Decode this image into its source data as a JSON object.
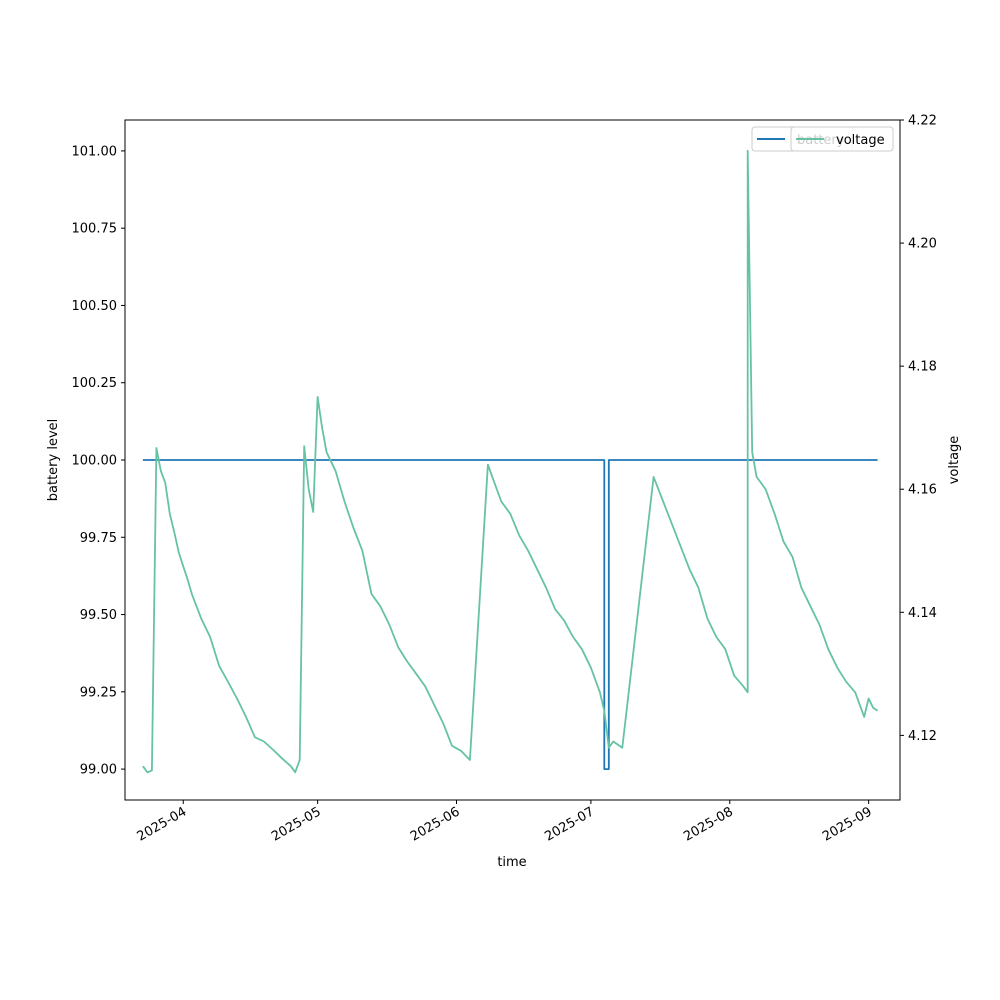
{
  "chart_data": {
    "type": "line",
    "xlabel": "time",
    "ylabel_left": "battery level",
    "ylabel_right": "voltage",
    "xlim": [
      "2025-03-19",
      "2025-09-08"
    ],
    "ylim_left": [
      98.9,
      101.1
    ],
    "ylim_right": [
      4.1095,
      4.22
    ],
    "x_ticks": [
      "2025-04",
      "2025-05",
      "2025-06",
      "2025-07",
      "2025-08",
      "2025-09"
    ],
    "y_ticks_left": [
      "99.00",
      "99.25",
      "99.50",
      "99.75",
      "100.00",
      "100.25",
      "100.50",
      "100.75",
      "101.00"
    ],
    "y_ticks_right": [
      "4.12",
      "4.14",
      "4.16",
      "4.18",
      "4.20",
      "4.22"
    ],
    "legend_left": {
      "placement": "top-right",
      "entries": [
        "battery"
      ]
    },
    "legend_right": {
      "placement": "top-right",
      "entries": [
        "voltage"
      ]
    },
    "colors": {
      "battery": "#1f77b4",
      "voltage": "#66c2a5"
    },
    "series": [
      {
        "name": "battery",
        "axis": "left",
        "points": [
          [
            "2025-03-23",
            100.0
          ],
          [
            "2025-07-04",
            100.0
          ],
          [
            "2025-07-04",
            99.0
          ],
          [
            "2025-07-05",
            99.0
          ],
          [
            "2025-07-05",
            100.0
          ],
          [
            "2025-09-03",
            100.0
          ]
        ]
      },
      {
        "name": "voltage",
        "axis": "right",
        "points": [
          [
            "2025-03-23",
            4.115
          ],
          [
            "2025-03-24",
            4.114
          ],
          [
            "2025-03-25",
            4.1143
          ],
          [
            "2025-03-26",
            4.1667
          ],
          [
            "2025-03-27",
            4.163
          ],
          [
            "2025-03-28",
            4.161
          ],
          [
            "2025-03-29",
            4.156
          ],
          [
            "2025-03-30",
            4.153
          ],
          [
            "2025-03-31",
            4.1497
          ],
          [
            "2025-04-01",
            4.1475
          ],
          [
            "2025-04-02",
            4.1453
          ],
          [
            "2025-04-03",
            4.1428
          ],
          [
            "2025-04-05",
            4.139
          ],
          [
            "2025-04-07",
            4.136
          ],
          [
            "2025-04-09",
            4.1313
          ],
          [
            "2025-04-11",
            4.1287
          ],
          [
            "2025-04-13",
            4.126
          ],
          [
            "2025-04-15",
            4.123
          ],
          [
            "2025-04-17",
            4.1197
          ],
          [
            "2025-04-19",
            4.119
          ],
          [
            "2025-04-21",
            4.1177
          ],
          [
            "2025-04-23",
            4.1163
          ],
          [
            "2025-04-25",
            4.115
          ],
          [
            "2025-04-26",
            4.114
          ],
          [
            "2025-04-27",
            4.116
          ],
          [
            "2025-04-28",
            4.167
          ],
          [
            "2025-04-29",
            4.16
          ],
          [
            "2025-04-30",
            4.1563
          ],
          [
            "2025-05-01",
            4.175
          ],
          [
            "2025-05-02",
            4.17
          ],
          [
            "2025-05-03",
            4.166
          ],
          [
            "2025-05-05",
            4.163
          ],
          [
            "2025-05-07",
            4.158
          ],
          [
            "2025-05-09",
            4.1537
          ],
          [
            "2025-05-11",
            4.15
          ],
          [
            "2025-05-13",
            4.143
          ],
          [
            "2025-05-15",
            4.141
          ],
          [
            "2025-05-17",
            4.138
          ],
          [
            "2025-05-19",
            4.1343
          ],
          [
            "2025-05-21",
            4.132
          ],
          [
            "2025-05-23",
            4.13
          ],
          [
            "2025-05-25",
            4.128
          ],
          [
            "2025-05-27",
            4.125
          ],
          [
            "2025-05-29",
            4.122
          ],
          [
            "2025-05-31",
            4.1183
          ],
          [
            "2025-06-02",
            4.1175
          ],
          [
            "2025-06-04",
            4.116
          ],
          [
            "2025-06-08",
            4.164
          ],
          [
            "2025-06-09",
            4.162
          ],
          [
            "2025-06-11",
            4.158
          ],
          [
            "2025-06-13",
            4.156
          ],
          [
            "2025-06-15",
            4.1525
          ],
          [
            "2025-06-17",
            4.15
          ],
          [
            "2025-06-19",
            4.147
          ],
          [
            "2025-06-21",
            4.144
          ],
          [
            "2025-06-23",
            4.1405
          ],
          [
            "2025-06-25",
            4.1387
          ],
          [
            "2025-06-27",
            4.136
          ],
          [
            "2025-06-29",
            4.134
          ],
          [
            "2025-07-01",
            4.131
          ],
          [
            "2025-07-03",
            4.127
          ],
          [
            "2025-07-04",
            4.124
          ],
          [
            "2025-07-05",
            4.118
          ],
          [
            "2025-07-06",
            4.119
          ],
          [
            "2025-07-07",
            4.1185
          ],
          [
            "2025-07-08",
            4.118
          ],
          [
            "2025-07-15",
            4.162
          ],
          [
            "2025-07-23",
            4.147
          ],
          [
            "2025-07-25",
            4.144
          ],
          [
            "2025-07-27",
            4.139
          ],
          [
            "2025-07-29",
            4.136
          ],
          [
            "2025-07-31",
            4.134
          ],
          [
            "2025-08-02",
            4.1297
          ],
          [
            "2025-08-04",
            4.128
          ],
          [
            "2025-08-05",
            4.127
          ],
          [
            "2025-08-05",
            4.215
          ],
          [
            "2025-08-06",
            4.166
          ],
          [
            "2025-08-07",
            4.162
          ],
          [
            "2025-08-09",
            4.16
          ],
          [
            "2025-08-11",
            4.156
          ],
          [
            "2025-08-13",
            4.1515
          ],
          [
            "2025-08-15",
            4.149
          ],
          [
            "2025-08-17",
            4.144
          ],
          [
            "2025-08-19",
            4.141
          ],
          [
            "2025-08-21",
            4.138
          ],
          [
            "2025-08-23",
            4.134
          ],
          [
            "2025-08-25",
            4.131
          ],
          [
            "2025-08-27",
            4.1287
          ],
          [
            "2025-08-29",
            4.127
          ],
          [
            "2025-08-31",
            4.123
          ],
          [
            "2025-09-01",
            4.126
          ],
          [
            "2025-09-02",
            4.1245
          ],
          [
            "2025-09-03",
            4.124
          ]
        ]
      }
    ]
  }
}
